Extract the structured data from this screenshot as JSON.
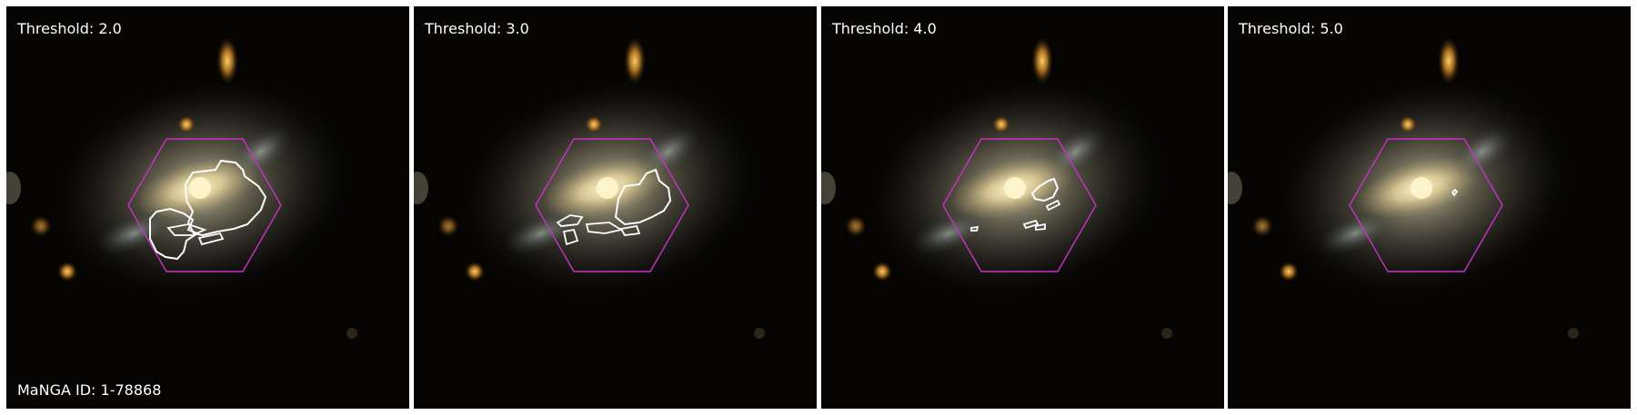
{
  "panels": [
    {
      "label": "Threshold: 2.0",
      "show_id": true
    },
    {
      "label": "Threshold: 3.0",
      "show_id": false
    },
    {
      "label": "Threshold: 4.0",
      "show_id": false
    },
    {
      "label": "Threshold: 5.0",
      "show_id": false
    }
  ],
  "galaxy_id_label": "MaNGA ID: 1-78868",
  "colors": {
    "ifu_hexagon": "#c832c8",
    "contour": "#ffffff",
    "background": "#050403",
    "galaxy_core": "#fff2c0",
    "star": "#f0a030"
  },
  "icons": {
    "ifu_footprint": "hexagon-outline",
    "emission_region": "contour-outline"
  }
}
